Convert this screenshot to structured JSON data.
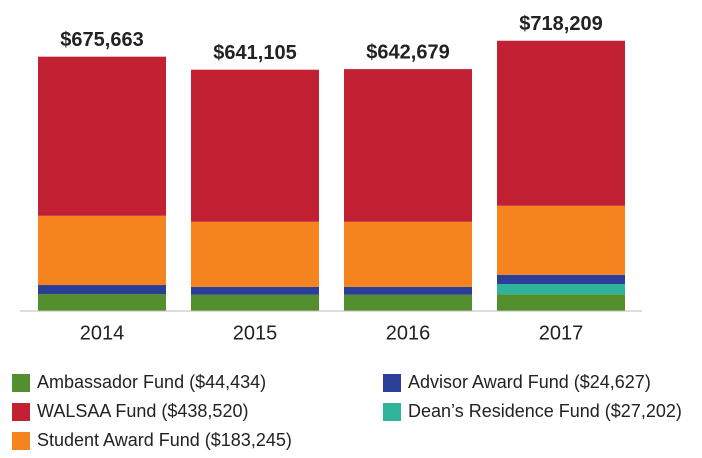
{
  "chart_data": {
    "type": "stacked_bar",
    "categories": [
      "2014",
      "2015",
      "2016",
      "2017"
    ],
    "series": [
      {
        "name": "Ambassador Fund ($44,434)",
        "color": "#548f2e",
        "values": [
          45000,
          43000,
          43000,
          44434
        ]
      },
      {
        "name": "Dean’s Residence Fund ($27,202)",
        "color": "#2fb39a",
        "values": [
          0,
          0,
          0,
          27202
        ]
      },
      {
        "name": "Advisor Award Fund ($24,627)",
        "color": "#2b3f98",
        "values": [
          24000,
          21000,
          21000,
          24627
        ]
      },
      {
        "name": "Student Award Fund ($183,245)",
        "color": "#f5841f",
        "values": [
          184000,
          173000,
          173000,
          183245
        ]
      },
      {
        "name": "WALSAA Fund ($438,520)",
        "color": "#c22033",
        "values": [
          422663,
          404105,
          405679,
          438520
        ]
      }
    ],
    "totals": [
      675663,
      641105,
      642679,
      718209
    ],
    "total_labels": [
      "$675,663",
      "$641,105",
      "$642,679",
      "$718,209"
    ],
    "ylim": [
      0,
      720000
    ]
  }
}
